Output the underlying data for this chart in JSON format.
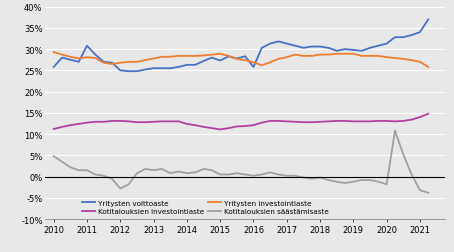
{
  "xlim": [
    2009.75,
    2021.75
  ],
  "ylim": [
    -0.1,
    0.4
  ],
  "yticks": [
    -0.1,
    -0.05,
    0.0,
    0.05,
    0.1,
    0.15,
    0.2,
    0.25,
    0.3,
    0.35,
    0.4
  ],
  "xticks": [
    2010,
    2011,
    2012,
    2013,
    2014,
    2015,
    2016,
    2017,
    2018,
    2019,
    2020,
    2021
  ],
  "legend": [
    {
      "label": "Yritysten voittoaste",
      "color": "#4472C4",
      "lw": 1.3
    },
    {
      "label": "Kotitalouksien investointiaste",
      "color": "#B040A0",
      "lw": 1.3
    },
    {
      "label": "Yritysten investointiaste",
      "color": "#ED7D31",
      "lw": 1.3
    },
    {
      "label": "Kotitalouksien säästämisaste",
      "color": "#A0A0A0",
      "lw": 1.3
    }
  ],
  "series": {
    "x": [
      2010.0,
      2010.25,
      2010.5,
      2010.75,
      2011.0,
      2011.25,
      2011.5,
      2011.75,
      2012.0,
      2012.25,
      2012.5,
      2012.75,
      2013.0,
      2013.25,
      2013.5,
      2013.75,
      2014.0,
      2014.25,
      2014.5,
      2014.75,
      2015.0,
      2015.25,
      2015.5,
      2015.75,
      2016.0,
      2016.25,
      2016.5,
      2016.75,
      2017.0,
      2017.25,
      2017.5,
      2017.75,
      2018.0,
      2018.25,
      2018.5,
      2018.75,
      2019.0,
      2019.25,
      2019.5,
      2019.75,
      2020.0,
      2020.25,
      2020.5,
      2020.75,
      2021.0,
      2021.25
    ],
    "voittoaste": [
      0.258,
      0.28,
      0.275,
      0.27,
      0.308,
      0.287,
      0.27,
      0.268,
      0.25,
      0.248,
      0.248,
      0.252,
      0.255,
      0.255,
      0.255,
      0.258,
      0.263,
      0.263,
      0.272,
      0.28,
      0.273,
      0.283,
      0.278,
      0.283,
      0.258,
      0.303,
      0.313,
      0.318,
      0.313,
      0.308,
      0.303,
      0.306,
      0.306,
      0.303,
      0.296,
      0.3,
      0.298,
      0.296,
      0.303,
      0.308,
      0.313,
      0.328,
      0.328,
      0.333,
      0.34,
      0.37
    ],
    "investointiaste_yritys": [
      0.293,
      0.287,
      0.282,
      0.278,
      0.281,
      0.279,
      0.268,
      0.265,
      0.268,
      0.27,
      0.27,
      0.274,
      0.278,
      0.282,
      0.282,
      0.284,
      0.284,
      0.284,
      0.285,
      0.287,
      0.289,
      0.284,
      0.277,
      0.274,
      0.269,
      0.262,
      0.269,
      0.277,
      0.281,
      0.287,
      0.284,
      0.284,
      0.287,
      0.287,
      0.289,
      0.289,
      0.289,
      0.284,
      0.284,
      0.284,
      0.281,
      0.279,
      0.277,
      0.274,
      0.27,
      0.258
    ],
    "investointiaste_koti": [
      0.112,
      0.117,
      0.121,
      0.124,
      0.127,
      0.129,
      0.129,
      0.131,
      0.131,
      0.13,
      0.128,
      0.128,
      0.129,
      0.13,
      0.13,
      0.13,
      0.124,
      0.121,
      0.117,
      0.114,
      0.111,
      0.114,
      0.118,
      0.119,
      0.121,
      0.127,
      0.131,
      0.131,
      0.13,
      0.129,
      0.128,
      0.128,
      0.129,
      0.13,
      0.131,
      0.131,
      0.13,
      0.13,
      0.13,
      0.131,
      0.131,
      0.13,
      0.131,
      0.134,
      0.14,
      0.148
    ],
    "saastamisaste": [
      0.048,
      0.035,
      0.022,
      0.015,
      0.015,
      0.005,
      0.002,
      -0.005,
      -0.028,
      -0.018,
      0.008,
      0.018,
      0.015,
      0.018,
      0.008,
      0.012,
      0.008,
      0.01,
      0.018,
      0.015,
      0.005,
      0.005,
      0.008,
      0.005,
      0.002,
      0.005,
      0.01,
      0.005,
      0.002,
      0.002,
      -0.002,
      -0.005,
      -0.002,
      -0.008,
      -0.012,
      -0.015,
      -0.012,
      -0.008,
      -0.008,
      -0.012,
      -0.018,
      0.108,
      0.052,
      0.005,
      -0.032,
      -0.038
    ]
  },
  "bg_color": "#e8e8e8",
  "plot_bg_color": "#e8e8e8",
  "grid_color": "#ffffff",
  "zero_line_color": "#000000"
}
